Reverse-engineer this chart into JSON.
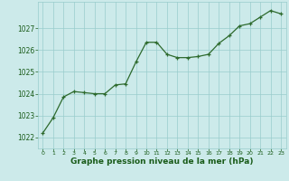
{
  "x": [
    0,
    1,
    2,
    3,
    4,
    5,
    6,
    7,
    8,
    9,
    10,
    11,
    12,
    13,
    14,
    15,
    16,
    17,
    18,
    19,
    20,
    21,
    22,
    23
  ],
  "y": [
    1022.2,
    1022.9,
    1023.85,
    1024.1,
    1024.05,
    1024.0,
    1024.0,
    1024.4,
    1024.45,
    1025.45,
    1026.35,
    1026.35,
    1025.8,
    1025.65,
    1025.65,
    1025.7,
    1025.8,
    1026.3,
    1026.65,
    1027.1,
    1027.2,
    1027.5,
    1027.8,
    1027.65
  ],
  "bg_color": "#cceaea",
  "line_color": "#2d6a2d",
  "marker_color": "#2d6a2d",
  "grid_color": "#99cccc",
  "xlabel": "Graphe pression niveau de la mer (hPa)",
  "xlabel_color": "#1a5c1a",
  "tick_color": "#1a5c1a",
  "ylim": [
    1021.5,
    1028.2
  ],
  "yticks": [
    1022,
    1023,
    1024,
    1025,
    1026,
    1027
  ],
  "xlim": [
    -0.5,
    23.5
  ],
  "xticks": [
    0,
    1,
    2,
    3,
    4,
    5,
    6,
    7,
    8,
    9,
    10,
    11,
    12,
    13,
    14,
    15,
    16,
    17,
    18,
    19,
    20,
    21,
    22,
    23
  ]
}
